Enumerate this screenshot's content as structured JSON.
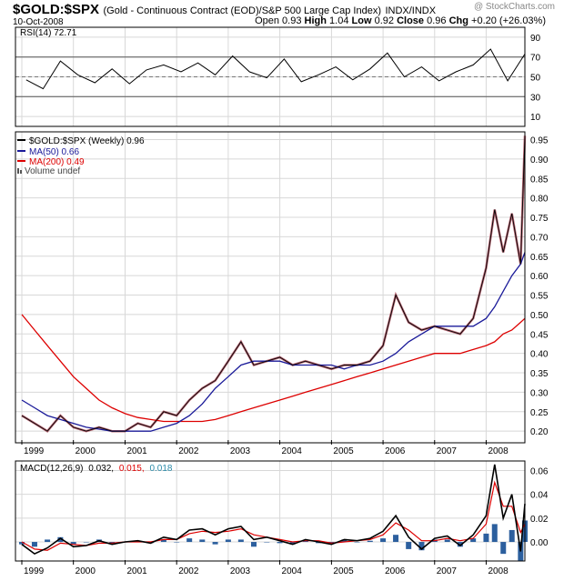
{
  "header": {
    "ticker": "$GOLD:$SPX",
    "description": "(Gold - Continuous Contract (EOD)/S&P 500 Large Cap Index)",
    "exchange": "INDX/INDX",
    "date": "10-Oct-2008",
    "brand": "@ StockCharts.com",
    "open_label": "Open",
    "open_value": "0.93",
    "high_label": "High",
    "high_value": "1.04",
    "low_label": "Low",
    "low_value": "0.92",
    "close_label": "Close",
    "close_value": "0.96",
    "chg_label": "Chg",
    "chg_value": "+0.20 (+26.03%)"
  },
  "legends": {
    "rsi": "RSI(14) 72.71",
    "price": "$GOLD:$SPX (Weekly) 0.96",
    "ma50": "MA(50) 0.66",
    "ma200": "MA(200) 0.49",
    "volume": "Volume undef",
    "macd_prefix": "MACD(12,26,9)",
    "macd_value": "0.032,",
    "macd_signal": "0.015,",
    "macd_hist": "0.018"
  },
  "colors": {
    "price": "#000000",
    "price_fill": "#9c2a3c",
    "ma50": "#1a1a99",
    "ma200": "#dd0000",
    "hist": "#2c5f9e",
    "macd_hist_text": "#2a8aa8",
    "grid": "#d8d8d8"
  },
  "chart_data": [
    {
      "type": "line",
      "title": "RSI(14)",
      "ylim": [
        0,
        100
      ],
      "yticks": [
        90,
        70,
        50,
        30,
        10
      ],
      "reference_lines": [
        70,
        30
      ],
      "last_value": 72.71,
      "x": [
        "1999-02",
        "1999-06",
        "1999-10",
        "2000-02",
        "2000-06",
        "2000-10",
        "2001-02",
        "2001-06",
        "2001-10",
        "2002-02",
        "2002-06",
        "2002-10",
        "2003-02",
        "2003-06",
        "2003-10",
        "2004-02",
        "2004-06",
        "2004-10",
        "2005-02",
        "2005-06",
        "2005-10",
        "2006-02",
        "2006-06",
        "2006-10",
        "2007-02",
        "2007-06",
        "2007-10",
        "2008-02",
        "2008-06",
        "2008-10"
      ],
      "series": [
        {
          "name": "RSI(14)",
          "values": [
            47,
            38,
            66,
            52,
            44,
            58,
            43,
            57,
            62,
            55,
            64,
            52,
            71,
            55,
            49,
            68,
            45,
            52,
            60,
            47,
            58,
            74,
            50,
            60,
            46,
            55,
            62,
            78,
            46,
            73
          ]
        }
      ]
    },
    {
      "type": "line",
      "title": "$GOLD:$SPX (Weekly)",
      "ylim": [
        0.17,
        0.97
      ],
      "yticks": [
        0.95,
        0.9,
        0.85,
        0.8,
        0.75,
        0.7,
        0.65,
        0.6,
        0.55,
        0.5,
        0.45,
        0.4,
        0.35,
        0.3,
        0.25,
        0.2
      ],
      "xticks": [
        "1999",
        "2000",
        "2001",
        "2002",
        "2003",
        "2004",
        "2005",
        "2006",
        "2007",
        "2008"
      ],
      "x": [
        "1999-01",
        "1999-04",
        "1999-07",
        "1999-10",
        "2000-01",
        "2000-04",
        "2000-07",
        "2000-10",
        "2001-01",
        "2001-04",
        "2001-07",
        "2001-10",
        "2002-01",
        "2002-04",
        "2002-07",
        "2002-10",
        "2003-01",
        "2003-04",
        "2003-07",
        "2003-10",
        "2004-01",
        "2004-04",
        "2004-07",
        "2004-10",
        "2005-01",
        "2005-04",
        "2005-07",
        "2005-10",
        "2006-01",
        "2006-04",
        "2006-07",
        "2006-10",
        "2007-01",
        "2007-04",
        "2007-07",
        "2007-10",
        "2008-01",
        "2008-03",
        "2008-05",
        "2008-07",
        "2008-09",
        "2008-10"
      ],
      "series": [
        {
          "name": "$GOLD:$SPX",
          "values": [
            0.24,
            0.22,
            0.2,
            0.24,
            0.21,
            0.2,
            0.21,
            0.2,
            0.2,
            0.22,
            0.21,
            0.25,
            0.24,
            0.28,
            0.31,
            0.33,
            0.38,
            0.43,
            0.37,
            0.38,
            0.39,
            0.37,
            0.38,
            0.37,
            0.36,
            0.37,
            0.37,
            0.38,
            0.42,
            0.55,
            0.48,
            0.46,
            0.47,
            0.46,
            0.45,
            0.49,
            0.62,
            0.77,
            0.66,
            0.76,
            0.63,
            0.96
          ]
        },
        {
          "name": "MA(50)",
          "values": [
            0.28,
            0.26,
            0.24,
            0.23,
            0.22,
            0.21,
            0.205,
            0.2,
            0.2,
            0.2,
            0.2,
            0.21,
            0.22,
            0.24,
            0.27,
            0.31,
            0.34,
            0.37,
            0.38,
            0.38,
            0.38,
            0.37,
            0.37,
            0.37,
            0.37,
            0.36,
            0.37,
            0.37,
            0.38,
            0.4,
            0.43,
            0.45,
            0.47,
            0.47,
            0.47,
            0.47,
            0.49,
            0.52,
            0.56,
            0.6,
            0.63,
            0.66
          ]
        },
        {
          "name": "MA(200)",
          "values": [
            0.5,
            0.46,
            0.42,
            0.38,
            0.34,
            0.31,
            0.28,
            0.26,
            0.245,
            0.235,
            0.23,
            0.225,
            0.225,
            0.225,
            0.225,
            0.23,
            0.24,
            0.25,
            0.26,
            0.27,
            0.28,
            0.29,
            0.3,
            0.31,
            0.32,
            0.33,
            0.34,
            0.35,
            0.36,
            0.37,
            0.38,
            0.39,
            0.4,
            0.4,
            0.4,
            0.41,
            0.42,
            0.43,
            0.45,
            0.46,
            0.48,
            0.49
          ]
        }
      ]
    },
    {
      "type": "line",
      "title": "MACD(12,26,9)",
      "ylim": [
        -0.016,
        0.068
      ],
      "yticks": [
        0.06,
        0.04,
        0.02,
        0.0
      ],
      "xticks": [
        "1999",
        "2000",
        "2001",
        "2002",
        "2003",
        "2004",
        "2005",
        "2006",
        "2007",
        "2008"
      ],
      "x": [
        "1999-01",
        "1999-04",
        "1999-07",
        "1999-10",
        "2000-01",
        "2000-04",
        "2000-07",
        "2000-10",
        "2001-01",
        "2001-04",
        "2001-07",
        "2001-10",
        "2002-01",
        "2002-04",
        "2002-07",
        "2002-10",
        "2003-01",
        "2003-04",
        "2003-07",
        "2003-10",
        "2004-01",
        "2004-04",
        "2004-07",
        "2004-10",
        "2005-01",
        "2005-04",
        "2005-07",
        "2005-10",
        "2006-01",
        "2006-04",
        "2006-07",
        "2006-10",
        "2007-01",
        "2007-04",
        "2007-07",
        "2007-10",
        "2008-01",
        "2008-03",
        "2008-05",
        "2008-07",
        "2008-09",
        "2008-10"
      ],
      "series": [
        {
          "name": "MACD",
          "values": [
            -0.002,
            -0.01,
            -0.005,
            0.003,
            -0.004,
            -0.003,
            0.001,
            -0.002,
            0.0,
            0.001,
            -0.001,
            0.004,
            0.002,
            0.01,
            0.011,
            0.006,
            0.011,
            0.013,
            0.002,
            0.004,
            0.001,
            -0.002,
            0.002,
            0.0,
            -0.002,
            0.002,
            0.001,
            0.003,
            0.009,
            0.022,
            0.004,
            -0.006,
            0.003,
            0.005,
            -0.003,
            0.006,
            0.022,
            0.065,
            0.02,
            0.04,
            -0.008,
            0.032
          ]
        },
        {
          "name": "Signal",
          "values": [
            0.0,
            -0.006,
            -0.007,
            -0.001,
            -0.002,
            -0.003,
            -0.001,
            -0.001,
            0.0,
            0.0,
            0.0,
            0.002,
            0.002,
            0.007,
            0.009,
            0.008,
            0.009,
            0.011,
            0.006,
            0.004,
            0.002,
            0.0,
            0.001,
            0.001,
            -0.001,
            0.0,
            0.001,
            0.002,
            0.006,
            0.016,
            0.01,
            0.001,
            0.001,
            0.003,
            0.001,
            0.003,
            0.015,
            0.05,
            0.03,
            0.03,
            0.008,
            0.015
          ]
        },
        {
          "name": "Histogram",
          "values": [
            -0.002,
            -0.004,
            0.002,
            0.004,
            -0.002,
            0.0,
            0.002,
            -0.001,
            0.0,
            0.001,
            -0.001,
            0.002,
            0.0,
            0.003,
            0.002,
            -0.002,
            0.002,
            0.002,
            -0.004,
            0.0,
            -0.001,
            -0.002,
            0.001,
            -0.001,
            -0.001,
            0.002,
            0.0,
            0.001,
            0.003,
            0.006,
            -0.006,
            -0.007,
            0.002,
            0.002,
            -0.004,
            0.003,
            0.007,
            0.015,
            -0.01,
            0.01,
            -0.016,
            0.018
          ]
        }
      ]
    }
  ]
}
